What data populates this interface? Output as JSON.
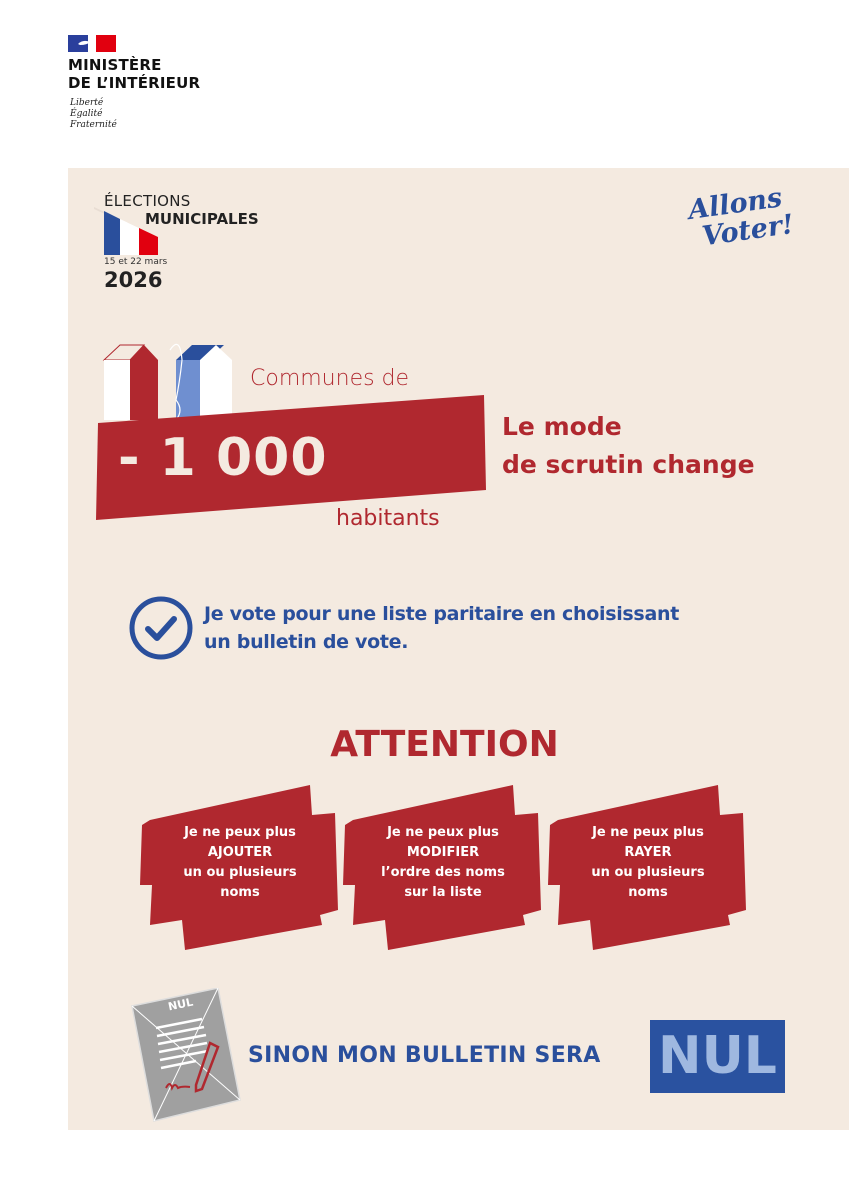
{
  "header": {
    "ministry_line1": "MINISTÈRE",
    "ministry_line2": "DE L’INTÉRIEUR",
    "motto": [
      "Liberté",
      "Égalité",
      "Fraternité"
    ]
  },
  "election": {
    "line1": "ÉLECTIONS",
    "line2": "MUNICIPALES",
    "dates": "15 et 22 mars",
    "year": "2026",
    "slogan_line1": "Allons",
    "slogan_line2": "Voter!"
  },
  "headline": {
    "prefix": "Communes de",
    "number": "- 1 000",
    "suffix": "habitants",
    "change_line1": "Le mode",
    "change_line2": "de scrutin change"
  },
  "vote_info": {
    "line1": "Je vote pour une liste paritaire en choisissant",
    "line2": "un bulletin de vote."
  },
  "attention": {
    "title": "ATTENTION",
    "items": [
      {
        "lines": [
          "Je ne peux plus",
          "AJOUTER",
          "un ou plusieurs",
          "noms"
        ]
      },
      {
        "lines": [
          "Je ne peux plus",
          "MODIFIER",
          "l’ordre des noms",
          "sur la liste"
        ]
      },
      {
        "lines": [
          "Je ne peux plus",
          "RAYER",
          "un ou plusieurs",
          "noms"
        ]
      }
    ]
  },
  "footer": {
    "ballot_label": "NUL",
    "warning": "SINON MON BULLETIN SERA",
    "nul": "NUL"
  },
  "colors": {
    "red": "#b0282f",
    "blue": "#2a4f9c",
    "background": "#f4eae0"
  }
}
